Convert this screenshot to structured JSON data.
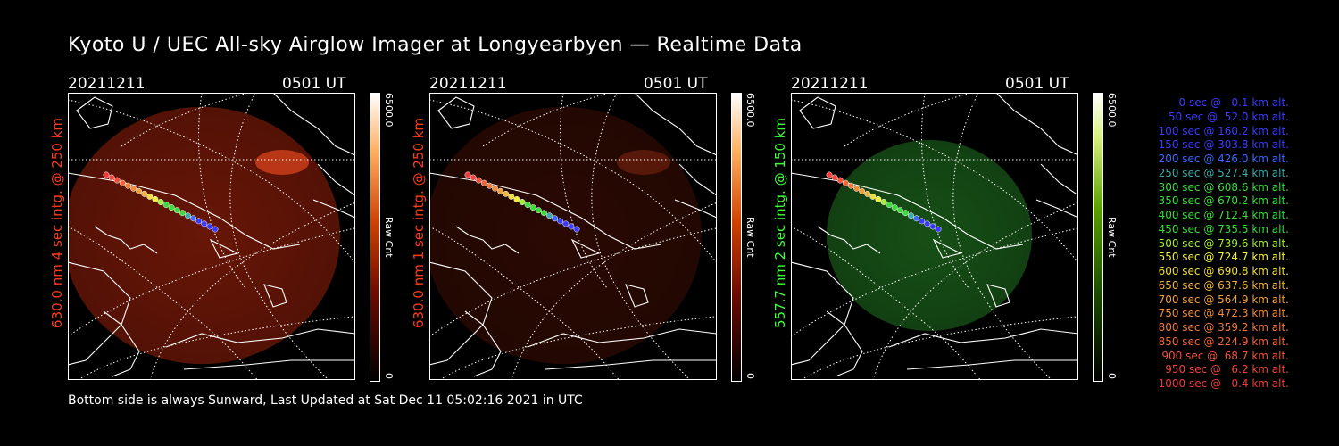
{
  "title": "Kyoto U / UEC All-sky Airglow Imager at Longyearbyen — Realtime Data",
  "footer": "Bottom side is always Sunward, Last Updated at Sat Dec 11 05:02:16 2021 in UTC",
  "colors": {
    "red_label": "#ff3a1a",
    "green_label": "#3cff3c",
    "red_glow": "#7a1a08",
    "green_glow": "#1e6a1e",
    "grid": "#ffffff"
  },
  "panels": [
    {
      "date": "20211211",
      "time": "0501 UT",
      "ylabel": "630.0 nm 4 sec intg. @ 250 km",
      "label_color": "#ff3a1a",
      "colorbar_max": "6500.0",
      "colorbar_label": "Raw Cnt",
      "colorbar_min": "0",
      "colormap": "red",
      "intensity": "bright"
    },
    {
      "date": "20211211",
      "time": "0501 UT",
      "ylabel": "630.0 nm 1 sec intg. @ 250 km",
      "label_color": "#ff3a1a",
      "colorbar_max": "6500.0",
      "colorbar_label": "Raw Cnt",
      "colorbar_min": "0",
      "colormap": "red",
      "intensity": "dim"
    },
    {
      "date": "20211211",
      "time": "0501 UT",
      "ylabel": "557.7 nm 2 sec intg. @ 150 km",
      "label_color": "#3cff3c",
      "colorbar_max": "6500.0",
      "colorbar_label": "Raw Cnt",
      "colorbar_min": "0",
      "colormap": "green",
      "intensity": "medium"
    }
  ],
  "legend": [
    {
      "text": "0 sec @   0.1 km alt.",
      "color": "#3a3aff"
    },
    {
      "text": "50 sec @  52.0 km alt.",
      "color": "#3a3aff"
    },
    {
      "text": "100 sec @ 160.2 km alt.",
      "color": "#3a3aff"
    },
    {
      "text": "150 sec @ 303.8 km alt.",
      "color": "#3a3aff"
    },
    {
      "text": "200 sec @ 426.0 km alt.",
      "color": "#3a6aff"
    },
    {
      "text": "250 sec @ 527.4 km alt.",
      "color": "#3aaaaa"
    },
    {
      "text": "300 sec @ 608.6 km alt.",
      "color": "#3adc3a"
    },
    {
      "text": "350 sec @ 670.2 km alt.",
      "color": "#3adc3a"
    },
    {
      "text": "400 sec @ 712.4 km alt.",
      "color": "#3adc3a"
    },
    {
      "text": "450 sec @ 735.5 km alt.",
      "color": "#3adc3a"
    },
    {
      "text": "500 sec @ 739.6 km alt.",
      "color": "#a0f03a"
    },
    {
      "text": "550 sec @ 724.7 km alt.",
      "color": "#f0f03a"
    },
    {
      "text": "600 sec @ 690.8 km alt.",
      "color": "#f0dc3a"
    },
    {
      "text": "650 sec @ 637.6 km alt.",
      "color": "#f0b43a"
    },
    {
      "text": "700 sec @ 564.9 km alt.",
      "color": "#f0a03a"
    },
    {
      "text": "750 sec @ 472.3 km alt.",
      "color": "#f08c3a"
    },
    {
      "text": "800 sec @ 359.2 km alt.",
      "color": "#f07a3a"
    },
    {
      "text": "850 sec @ 224.9 km alt.",
      "color": "#f0643a"
    },
    {
      "text": "900 sec @  68.7 km alt.",
      "color": "#f0503a"
    },
    {
      "text": "950 sec @   6.2 km alt.",
      "color": "#f0463a"
    },
    {
      "text": "1000 sec @   0.4 km alt.",
      "color": "#f03a3a"
    }
  ]
}
